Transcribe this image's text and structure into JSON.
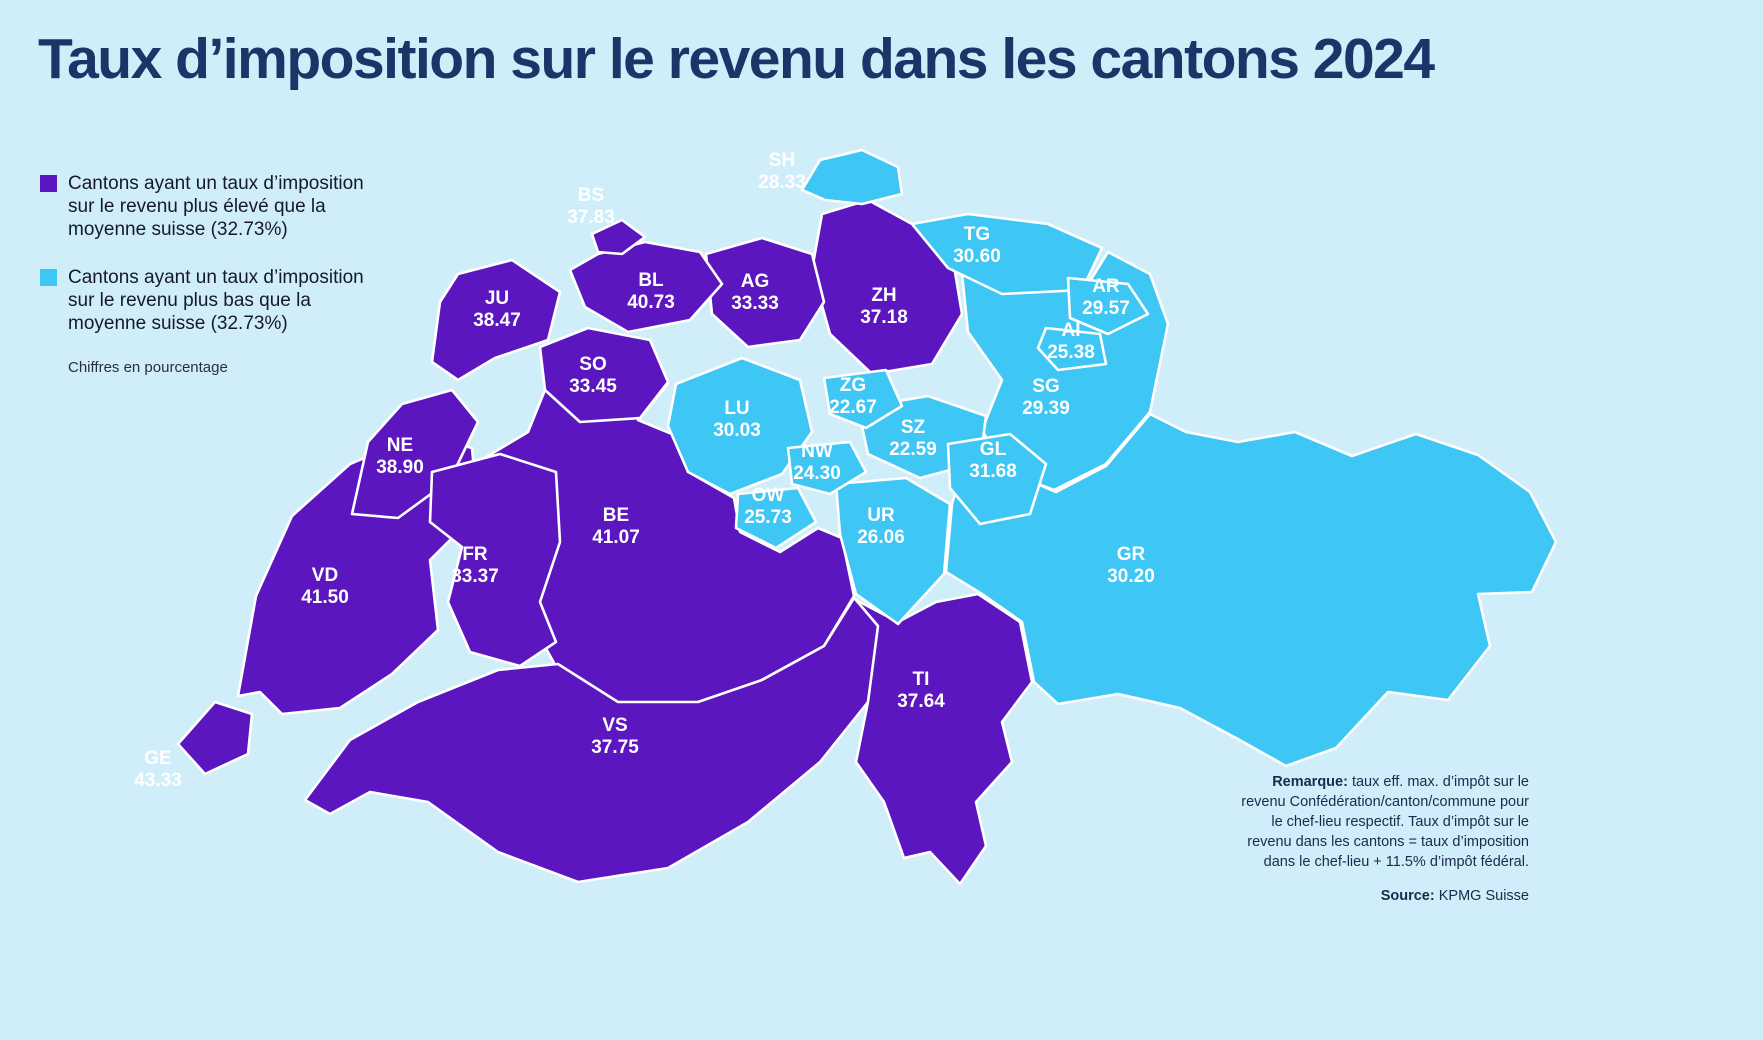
{
  "title": "Taux d’imposition sur le revenu dans les cantons 2024",
  "colors": {
    "above": "#5b16bf",
    "below": "#3ec6f4",
    "title": "#1a3668",
    "background": "#cfeefa",
    "border": "#ffffff",
    "label_inside": "#ffffff"
  },
  "legend": {
    "above": {
      "text": "Cantons ayant un taux d’imposition sur le revenu plus élevé que la moyenne suisse (32.73%)"
    },
    "below": {
      "text": "Cantons ayant un taux d’imposition sur le revenu plus bas que la moyenne suisse (32.73%)"
    },
    "note": "Chiffres en pourcentage"
  },
  "footer": {
    "remark_label": "Remarque:",
    "remark_text": " taux eff. max. d’impôt sur le revenu Confédération/canton/commune pour le chef-lieu respectif. Taux d’impôt sur le revenu dans les cantons = taux d’imposition dans le chef-lieu + 11.5% d’impôt fédéral.",
    "source_label": "Source:",
    "source_text": " KPMG Suisse"
  },
  "chart_data": {
    "type": "choropleth",
    "title": "Taux d’imposition sur le revenu dans les cantons 2024",
    "unit": "percent",
    "average": 32.73,
    "legend_position": "top-left",
    "groups": {
      "above": "taux plus élevé que la moyenne suisse (32.73%)",
      "below": "taux plus bas que la moyenne suisse (32.73%)"
    },
    "cantons": [
      {
        "code": "GR",
        "value": "30.20",
        "group": "below"
      },
      {
        "code": "BE",
        "value": "41.07",
        "group": "above"
      },
      {
        "code": "VS",
        "value": "37.75",
        "group": "above"
      },
      {
        "code": "VD",
        "value": "41.50",
        "group": "above"
      },
      {
        "code": "SG",
        "value": "29.39",
        "group": "below"
      },
      {
        "code": "TI",
        "value": "37.64",
        "group": "above"
      },
      {
        "code": "UR",
        "value": "26.06",
        "group": "below"
      },
      {
        "code": "SZ",
        "value": "22.59",
        "group": "below"
      },
      {
        "code": "LU",
        "value": "30.03",
        "group": "below"
      },
      {
        "code": "ZH",
        "value": "37.18",
        "group": "above"
      },
      {
        "code": "TG",
        "value": "30.60",
        "group": "below"
      },
      {
        "code": "AG",
        "value": "33.33",
        "group": "above"
      },
      {
        "code": "JU",
        "value": "38.47",
        "group": "above"
      },
      {
        "code": "BL",
        "value": "40.73",
        "group": "above"
      },
      {
        "code": "SO",
        "value": "33.45",
        "group": "above"
      },
      {
        "code": "NE",
        "value": "38.90",
        "group": "above"
      },
      {
        "code": "FR",
        "value": "33.37",
        "group": "above"
      },
      {
        "code": "GL",
        "value": "31.68",
        "group": "below"
      },
      {
        "code": "ZG",
        "value": "22.67",
        "group": "below"
      },
      {
        "code": "NW",
        "value": "24.30",
        "group": "below"
      },
      {
        "code": "OW",
        "value": "25.73",
        "group": "below"
      },
      {
        "code": "AR",
        "value": "29.57",
        "group": "below"
      },
      {
        "code": "AI",
        "value": "25.38",
        "group": "below"
      },
      {
        "code": "SH",
        "value": "28.33",
        "group": "below"
      },
      {
        "code": "BS",
        "value": "37.83",
        "group": "above"
      },
      {
        "code": "GE",
        "value": "43.33",
        "group": "above"
      }
    ]
  }
}
